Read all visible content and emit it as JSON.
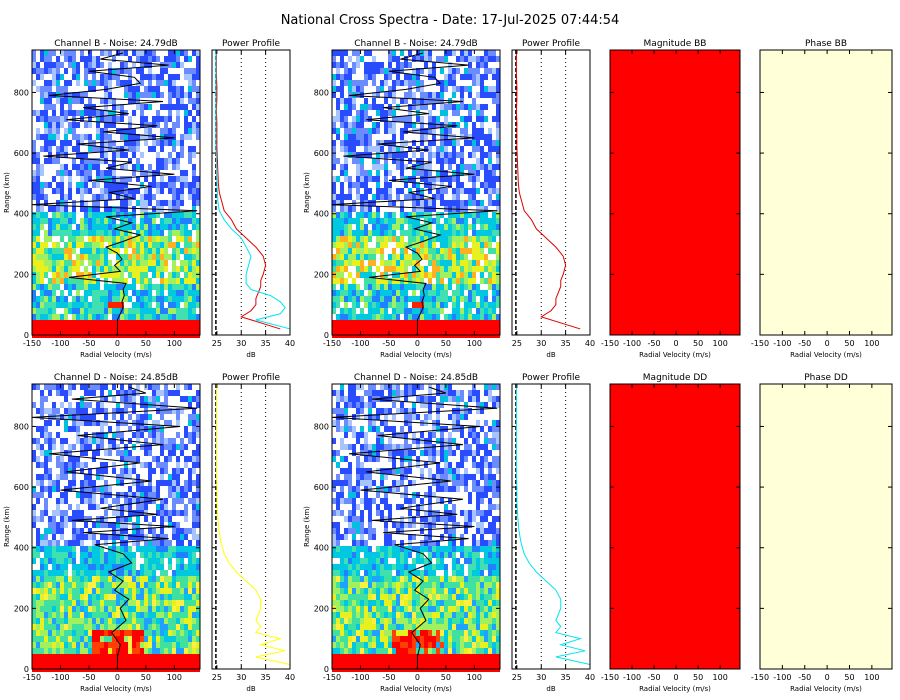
{
  "title": "National Cross Spectra - Date: 17-Jul-2025 07:44:54",
  "colors": {
    "power_channel_B": "#e00000",
    "power_channel_D": "#ffff00",
    "power_cross_B": "#00e5ee",
    "power_cross_D": "#00e5ee",
    "magnitude_fill": "#ff0000",
    "phase_fill": "#ffffd8",
    "clutter_band": "#ff0000",
    "mean_velocity_trace": "#000000"
  },
  "chart_data": [
    {
      "id": "spec-b1",
      "type": "heatmap",
      "title": "Channel B - Noise: 24.79dB",
      "xlabel": "Radial Velocity (m/s)",
      "ylabel": "Range (km)",
      "xlim": [
        -150,
        145
      ],
      "ylim": [
        0,
        940
      ],
      "xticks": [
        -150,
        -100,
        -50,
        0,
        50,
        100
      ],
      "yticks": [
        0,
        200,
        400,
        600,
        800
      ],
      "noise_db": 24.79,
      "mean_velocity": {
        "range_km": [
          50,
          70,
          90,
          110,
          130,
          150,
          170,
          190,
          210,
          230,
          250,
          270,
          290,
          310,
          330,
          350,
          370,
          390,
          410,
          430,
          450,
          470,
          490,
          510,
          530,
          550,
          570,
          590,
          610,
          630,
          650,
          670,
          690,
          710,
          730,
          750,
          770,
          790,
          810,
          830,
          850,
          870,
          890,
          910,
          930
        ],
        "velocity_ms": [
          0,
          5,
          10,
          8,
          12,
          10,
          15,
          -85,
          5,
          -5,
          8,
          0,
          -20,
          12,
          40,
          -5,
          25,
          -20,
          140,
          -150,
          30,
          -15,
          60,
          -50,
          100,
          -20,
          25,
          -130,
          20,
          -70,
          100,
          -25,
          70,
          -90,
          20,
          -60,
          80,
          -120,
          -20,
          40,
          30,
          -50,
          90,
          -30,
          10
        ]
      }
    },
    {
      "id": "power-b1",
      "type": "line",
      "title": "Power Profile",
      "xlabel": "dB",
      "xlim": [
        24,
        40
      ],
      "xticks": [
        25,
        30,
        35,
        40
      ],
      "ylim": [
        0,
        940
      ],
      "series": [
        {
          "color_key": "power_channel_B",
          "range_km": [
            20,
            60,
            80,
            100,
            120,
            140,
            160,
            180,
            200,
            230,
            260,
            290,
            320,
            350,
            380,
            410,
            440,
            470,
            500,
            540,
            580,
            620,
            660,
            700,
            740,
            780,
            820,
            860,
            900,
            940
          ],
          "db": [
            38,
            30,
            32,
            33,
            33,
            33.5,
            34,
            34,
            34.5,
            35,
            34.5,
            33,
            31,
            29,
            28,
            26.5,
            26,
            25.5,
            25.3,
            25.2,
            25.1,
            25,
            25,
            25,
            24.9,
            25,
            25,
            24.9,
            24.9,
            24.9
          ]
        },
        {
          "color_key": "power_cross_B",
          "range_km": [
            20,
            50,
            70,
            90,
            110,
            130,
            150,
            170,
            200,
            230,
            260,
            290,
            320,
            350,
            380,
            410,
            440,
            470,
            500,
            540,
            580,
            620,
            660,
            700,
            740,
            780,
            820,
            860,
            900,
            940
          ],
          "db": [
            40,
            33,
            38,
            39,
            38,
            36,
            32,
            31,
            31,
            31.5,
            32,
            31,
            30,
            28,
            26.5,
            25.5,
            25.2,
            25.1,
            25,
            24.9,
            24.9,
            24.8,
            24.8,
            24.8,
            24.8,
            24.8,
            24.8,
            24.8,
            24.8,
            24.8
          ]
        }
      ]
    },
    {
      "id": "spec-b2",
      "type": "heatmap",
      "title": "Channel B - Noise: 24.79dB",
      "xlabel": "Radial Velocity (m/s)",
      "ylabel": "Range (km)",
      "xlim": [
        -150,
        145
      ],
      "ylim": [
        0,
        940
      ],
      "xticks": [
        -150,
        -100,
        -50,
        0,
        50,
        100
      ],
      "yticks": [
        0,
        200,
        400,
        600,
        800
      ],
      "noise_db": 24.79,
      "mean_velocity": {
        "range_km": [
          50,
          70,
          90,
          110,
          130,
          150,
          170,
          190,
          210,
          230,
          250,
          270,
          290,
          310,
          330,
          350,
          370,
          390,
          410,
          430,
          450,
          470,
          490,
          510,
          530,
          550,
          570,
          590,
          610,
          630,
          650,
          670,
          690,
          710,
          730,
          750,
          770,
          790,
          810,
          830,
          850,
          870,
          890,
          910,
          930
        ],
        "velocity_ms": [
          0,
          5,
          10,
          8,
          12,
          10,
          15,
          -85,
          5,
          -5,
          8,
          0,
          -20,
          12,
          40,
          -5,
          25,
          -20,
          140,
          -150,
          30,
          -15,
          60,
          -50,
          100,
          -20,
          25,
          -130,
          20,
          -70,
          100,
          -25,
          70,
          -90,
          20,
          -60,
          80,
          -120,
          -20,
          40,
          30,
          -50,
          90,
          -30,
          10
        ]
      }
    },
    {
      "id": "power-b2",
      "type": "line",
      "title": "Power Profile",
      "xlabel": "dB",
      "xlim": [
        24,
        40
      ],
      "xticks": [
        25,
        30,
        35,
        40
      ],
      "ylim": [
        0,
        940
      ],
      "series": [
        {
          "color_key": "power_channel_B",
          "range_km": [
            20,
            60,
            80,
            100,
            120,
            140,
            160,
            180,
            200,
            230,
            260,
            290,
            320,
            350,
            380,
            410,
            440,
            470,
            500,
            540,
            580,
            620,
            660,
            700,
            740,
            780,
            820,
            860,
            900,
            940
          ],
          "db": [
            38,
            30,
            32,
            33,
            33,
            33.5,
            34,
            34,
            34.5,
            35,
            34.5,
            33,
            31,
            29,
            28,
            26.5,
            26,
            25.5,
            25.3,
            25.2,
            25.1,
            25,
            25,
            25,
            24.9,
            25,
            25,
            24.9,
            24.9,
            24.9
          ]
        }
      ]
    },
    {
      "id": "mag-bb",
      "type": "heatmap",
      "title": "Magnitude BB",
      "xlabel": "Radial Velocity (m/s)",
      "xlim": [
        -150,
        145
      ],
      "xticks": [
        -150,
        -100,
        -50,
        0,
        50,
        100
      ],
      "ylim": [
        0,
        940
      ],
      "fill_color_key": "magnitude_fill"
    },
    {
      "id": "phase-bb",
      "type": "heatmap",
      "title": "Phase BB",
      "xlabel": "Radial Velocity (m/s)",
      "xlim": [
        -150,
        145
      ],
      "xticks": [
        -150,
        -100,
        -50,
        0,
        50,
        100
      ],
      "ylim": [
        0,
        940
      ],
      "fill_color_key": "phase_fill"
    },
    {
      "id": "spec-d1",
      "type": "heatmap",
      "title": "Channel D - Noise: 24.85dB",
      "xlabel": "Radial Velocity (m/s)",
      "ylabel": "Range (km)",
      "xlim": [
        -150,
        145
      ],
      "ylim": [
        0,
        940
      ],
      "xticks": [
        -150,
        -100,
        -50,
        0,
        50,
        100
      ],
      "yticks": [
        0,
        200,
        400,
        600,
        800
      ],
      "noise_db": 24.85,
      "mean_velocity": {
        "range_km": [
          40,
          80,
          120,
          160,
          200,
          230,
          260,
          290,
          320,
          350,
          380,
          410,
          430,
          450,
          470,
          490,
          510,
          530,
          560,
          590,
          620,
          650,
          680,
          710,
          740,
          770,
          800,
          830,
          860,
          890,
          910,
          930
        ],
        "velocity_ms": [
          0,
          5,
          -10,
          15,
          5,
          20,
          -5,
          10,
          -15,
          25,
          10,
          -40,
          90,
          -60,
          100,
          -80,
          70,
          -30,
          80,
          -100,
          60,
          -90,
          40,
          -120,
          80,
          -70,
          110,
          -150,
          140,
          -80,
          50,
          20
        ]
      }
    },
    {
      "id": "power-d1",
      "type": "line",
      "title": "Power Profile",
      "xlabel": "dB",
      "xlim": [
        24,
        40
      ],
      "xticks": [
        25,
        30,
        35,
        40
      ],
      "ylim": [
        0,
        940
      ],
      "series": [
        {
          "color_key": "power_channel_D",
          "range_km": [
            15,
            40,
            60,
            80,
            100,
            120,
            140,
            160,
            180,
            200,
            230,
            260,
            290,
            320,
            350,
            380,
            420,
            460,
            500,
            550,
            600,
            650,
            700,
            750,
            800,
            850,
            900,
            940
          ],
          "db": [
            40,
            33,
            39,
            34,
            38,
            33,
            34,
            33,
            33.5,
            34,
            34,
            33,
            31,
            29,
            27.5,
            26.5,
            25.8,
            25.4,
            25.2,
            25,
            25,
            24.9,
            24.9,
            24.9,
            24.9,
            24.9,
            24.9,
            24.9
          ]
        }
      ]
    },
    {
      "id": "spec-d2",
      "type": "heatmap",
      "title": "Channel D - Noise: 24.85dB",
      "xlabel": "Radial Velocity (m/s)",
      "ylabel": "Range (km)",
      "xlim": [
        -150,
        145
      ],
      "ylim": [
        0,
        940
      ],
      "xticks": [
        -150,
        -100,
        -50,
        0,
        50,
        100
      ],
      "yticks": [
        0,
        200,
        400,
        600,
        800
      ],
      "noise_db": 24.85,
      "mean_velocity": {
        "range_km": [
          40,
          80,
          120,
          160,
          200,
          230,
          260,
          290,
          320,
          350,
          380,
          410,
          430,
          450,
          470,
          490,
          510,
          530,
          560,
          590,
          620,
          650,
          680,
          710,
          740,
          770,
          800,
          830,
          860,
          890,
          910,
          930
        ],
        "velocity_ms": [
          0,
          5,
          -10,
          15,
          5,
          20,
          -5,
          10,
          -15,
          25,
          10,
          -40,
          90,
          -60,
          100,
          -80,
          70,
          -30,
          80,
          -100,
          60,
          -90,
          40,
          -120,
          80,
          -70,
          110,
          -150,
          140,
          -80,
          50,
          20
        ]
      }
    },
    {
      "id": "power-d2",
      "type": "line",
      "title": "Power Profile",
      "xlabel": "dB",
      "xlim": [
        24,
        40
      ],
      "xticks": [
        25,
        30,
        35,
        40
      ],
      "ylim": [
        0,
        940
      ],
      "series": [
        {
          "color_key": "power_cross_D",
          "range_km": [
            15,
            40,
            60,
            80,
            100,
            120,
            140,
            160,
            180,
            200,
            230,
            260,
            290,
            320,
            350,
            380,
            420,
            460,
            500,
            550,
            600,
            650,
            700,
            750,
            800,
            850,
            900,
            940
          ],
          "db": [
            40,
            33,
            39,
            34,
            38,
            33,
            34,
            33,
            33.5,
            34,
            34,
            33,
            31,
            29,
            27.5,
            26.5,
            25.8,
            25.4,
            25.2,
            25,
            25,
            24.9,
            24.9,
            24.9,
            24.9,
            24.9,
            24.9,
            24.9
          ]
        }
      ]
    },
    {
      "id": "mag-dd",
      "type": "heatmap",
      "title": "Magnitude DD",
      "xlabel": "Radial Velocity (m/s)",
      "xlim": [
        -150,
        145
      ],
      "xticks": [
        -150,
        -100,
        -50,
        0,
        50,
        100
      ],
      "ylim": [
        0,
        940
      ],
      "fill_color_key": "magnitude_fill"
    },
    {
      "id": "phase-dd",
      "type": "heatmap",
      "title": "Phase DD",
      "xlabel": "Radial Velocity (m/s)",
      "xlim": [
        -150,
        145
      ],
      "xticks": [
        -150,
        -100,
        -50,
        0,
        50,
        100
      ],
      "ylim": [
        0,
        940
      ],
      "fill_color_key": "phase_fill"
    }
  ]
}
